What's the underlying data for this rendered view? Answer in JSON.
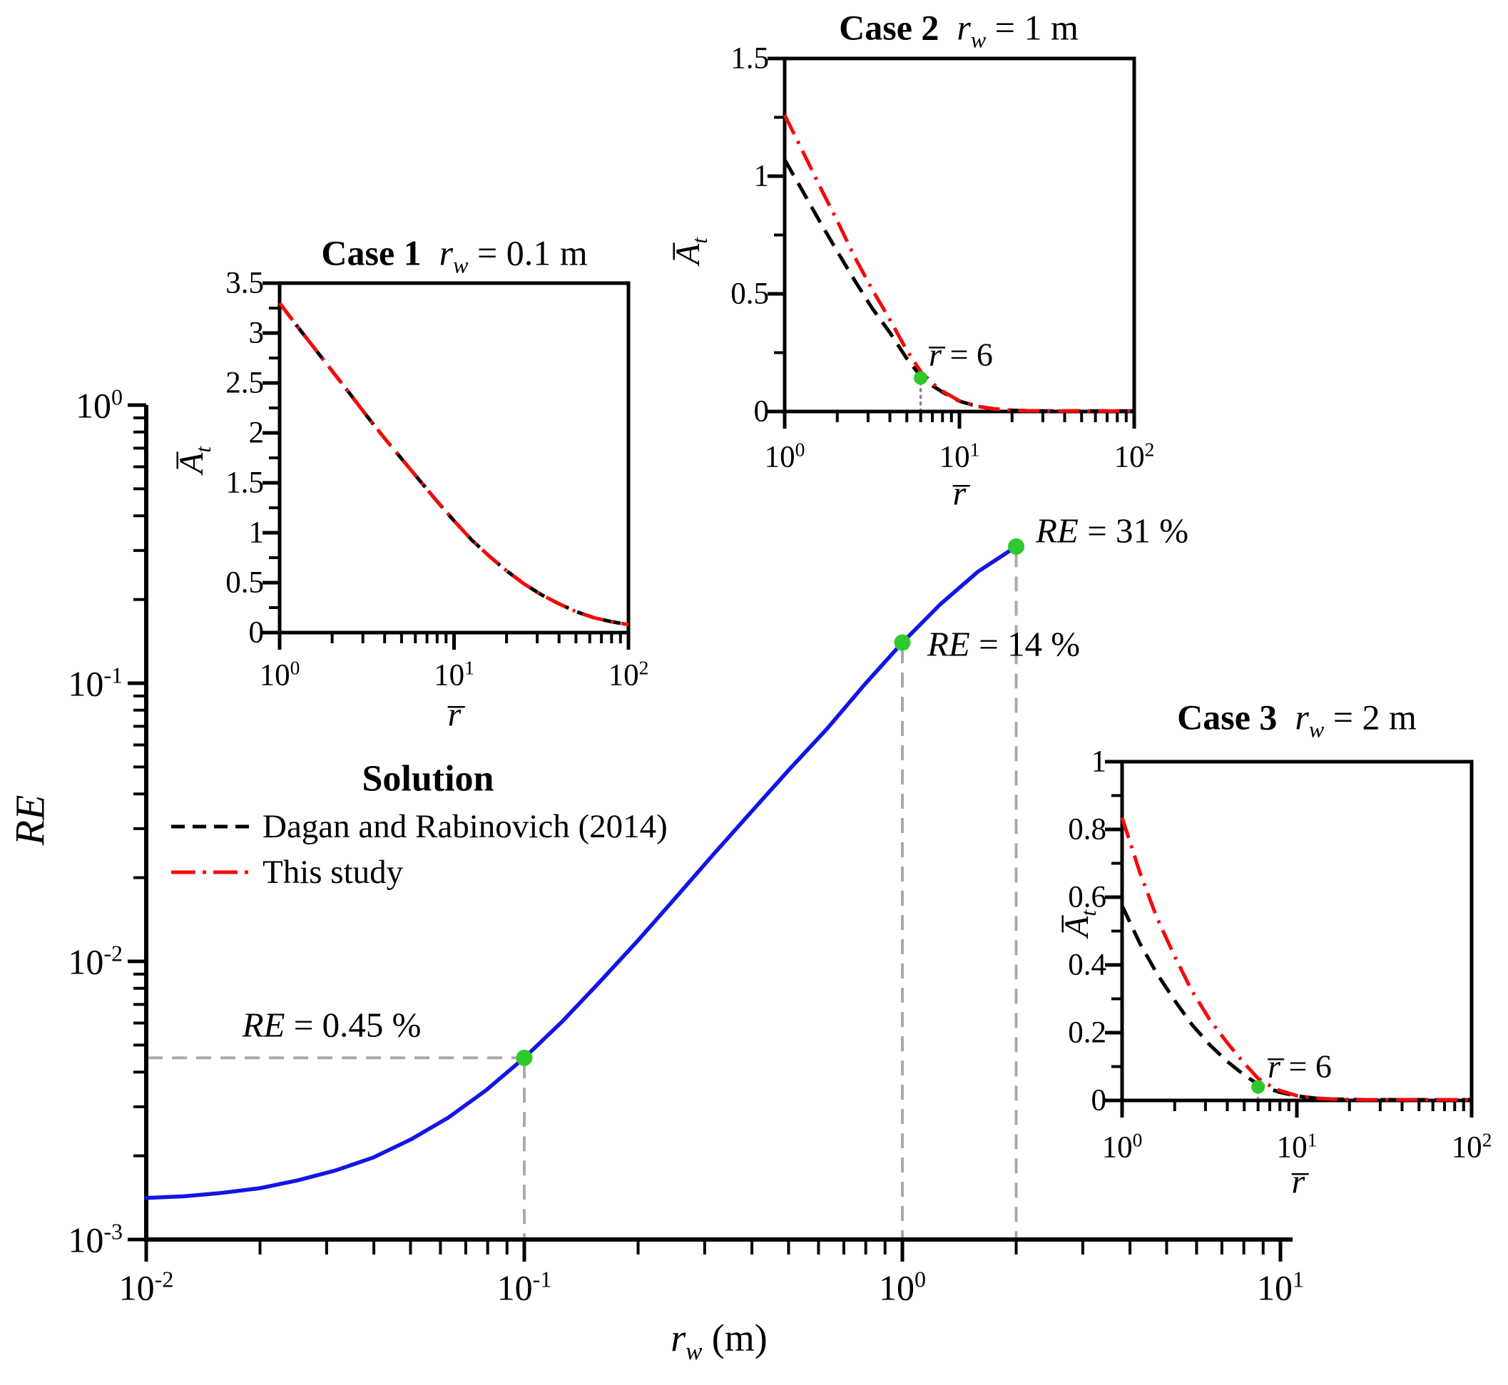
{
  "colors": {
    "curve_blue": "#1414e6",
    "curve_red": "#f50a0a",
    "curve_black": "#000000",
    "marker_green": "#2dc92d",
    "guide_gray": "#aaaaaa",
    "dotted_gray": "#8a8a8a"
  },
  "legend": {
    "title": "Solution",
    "items": [
      {
        "label": "Dagan and Rabinovich (2014)",
        "style": "dashed",
        "color": "#000000"
      },
      {
        "label": "This study",
        "style": "dashdot",
        "color": "#f50a0a"
      }
    ]
  },
  "main": {
    "ylabel": "RE",
    "xlabel": {
      "var": "r",
      "sub": "w",
      "rest": " (m)"
    },
    "tick_base": "10",
    "x_tick_exps": [
      "-2",
      "-1",
      "0",
      "1"
    ],
    "y_tick_exps": [
      "0",
      "-1",
      "-2",
      "-3"
    ],
    "annotations": [
      {
        "var": "RE",
        "rest": " = 0.45 %"
      },
      {
        "var": "RE",
        "rest": " = 14 %"
      },
      {
        "var": "RE",
        "rest": " = 31 %"
      }
    ]
  },
  "insets": {
    "case1": {
      "title": {
        "case": "Case 1",
        "var": "r",
        "sub": "w",
        "rest": " = 0.1 m"
      },
      "ylabel": {
        "var": "A̅",
        "sub": "t"
      },
      "xlabel": {
        "var": "r̅"
      },
      "tick_base": "10",
      "x_tick_exps": [
        "0",
        "1",
        "2"
      ],
      "y_tick_labels": [
        "3.5",
        "3",
        "2.5",
        "2",
        "1.5",
        "1",
        "0.5",
        "0"
      ],
      "y_tick_values": [
        3.5,
        3,
        2.5,
        2,
        1.5,
        1,
        0.5,
        0
      ]
    },
    "case2": {
      "title": {
        "case": "Case 2",
        "var": "r",
        "sub": "w",
        "rest": " = 1 m"
      },
      "ylabel": {
        "var": "A̅",
        "sub": "t"
      },
      "xlabel": {
        "var": "r̅"
      },
      "tick_base": "10",
      "x_tick_exps": [
        "0",
        "1",
        "2"
      ],
      "y_tick_labels": [
        "1.5",
        "1",
        "0.5",
        "0"
      ],
      "y_tick_values": [
        1.5,
        1,
        0.5,
        0
      ],
      "annotation": {
        "var": "r̅",
        "rest": " = 6"
      }
    },
    "case3": {
      "title": {
        "case": "Case 3",
        "var": "r",
        "sub": "w",
        "rest": " = 2 m"
      },
      "ylabel": {
        "var": "A̅",
        "sub": "t"
      },
      "xlabel": {
        "var": "r̅"
      },
      "tick_base": "10",
      "x_tick_exps": [
        "0",
        "1",
        "2"
      ],
      "y_tick_labels": [
        "1",
        "0.8",
        "0.6",
        "0.4",
        "0.2",
        "0"
      ],
      "y_tick_values": [
        1,
        0.8,
        0.6,
        0.4,
        0.2,
        0
      ],
      "annotation": {
        "var": "r̅",
        "rest": " = 6"
      }
    }
  },
  "chart_data": [
    {
      "id": "main",
      "type": "line",
      "title": "",
      "xlabel": "r_w (m)",
      "ylabel": "RE",
      "x_scale": "log",
      "y_scale": "log",
      "xlim": [
        0.01,
        10
      ],
      "ylim": [
        0.001,
        1
      ],
      "grid": false,
      "legend_position": "upper-left-inside",
      "series": [
        {
          "name": "RE vs r_w",
          "color_key": "curve_blue",
          "x": [
            0.01,
            0.0126,
            0.0158,
            0.02,
            0.0251,
            0.0316,
            0.0398,
            0.0501,
            0.0631,
            0.0794,
            0.1,
            0.126,
            0.158,
            0.2,
            0.251,
            0.316,
            0.398,
            0.501,
            0.631,
            0.794,
            1.0,
            1.259,
            1.585,
            2.0
          ],
          "y": [
            0.00141,
            0.00143,
            0.00147,
            0.00153,
            0.00163,
            0.00177,
            0.00197,
            0.00229,
            0.00275,
            0.00345,
            0.0045,
            0.00608,
            0.00841,
            0.0119,
            0.0169,
            0.0242,
            0.0344,
            0.0488,
            0.0684,
            0.0988,
            0.14,
            0.192,
            0.252,
            0.31
          ]
        }
      ],
      "markers": [
        {
          "x": 0.1,
          "y": 0.0045,
          "label": "RE = 0.45 %"
        },
        {
          "x": 1.0,
          "y": 0.14,
          "label": "RE = 14 %"
        },
        {
          "x": 2.0,
          "y": 0.31,
          "label": "RE = 31 %"
        }
      ]
    },
    {
      "id": "case1",
      "type": "line",
      "title": "Case 1 r_w = 0.1 m",
      "xlabel": "r̅",
      "ylabel": "A̅_t",
      "x_scale": "log",
      "y_scale": "linear",
      "xlim": [
        1,
        100
      ],
      "ylim": [
        0,
        3.5
      ],
      "series": [
        {
          "name": "Dagan and Rabinovich (2014)",
          "color_key": "curve_black",
          "x": [
            1,
            1.26,
            1.58,
            2,
            2.51,
            3.16,
            3.98,
            5.01,
            6.31,
            7.94,
            10,
            12.6,
            15.8,
            20,
            25.1,
            31.6,
            39.8,
            50.1,
            63.1,
            79.4,
            100
          ],
          "y": [
            3.3,
            3.07,
            2.85,
            2.62,
            2.4,
            2.17,
            1.95,
            1.74,
            1.53,
            1.32,
            1.12,
            0.93,
            0.77,
            0.62,
            0.49,
            0.38,
            0.29,
            0.21,
            0.15,
            0.11,
            0.08
          ]
        },
        {
          "name": "This study",
          "color_key": "curve_red",
          "x": [
            1,
            1.26,
            1.58,
            2,
            2.51,
            3.16,
            3.98,
            5.01,
            6.31,
            7.94,
            10,
            12.6,
            15.8,
            20,
            25.1,
            31.6,
            39.8,
            50.1,
            63.1,
            79.4,
            100
          ],
          "y": [
            3.3,
            3.07,
            2.85,
            2.62,
            2.4,
            2.17,
            1.95,
            1.74,
            1.53,
            1.32,
            1.12,
            0.93,
            0.77,
            0.62,
            0.49,
            0.38,
            0.29,
            0.21,
            0.15,
            0.11,
            0.08
          ]
        }
      ],
      "markers": []
    },
    {
      "id": "case2",
      "type": "line",
      "title": "Case 2 r_w = 1 m",
      "xlabel": "r̅",
      "ylabel": "A̅_t",
      "x_scale": "log",
      "y_scale": "linear",
      "xlim": [
        1,
        100
      ],
      "ylim": [
        0,
        1.5
      ],
      "series": [
        {
          "name": "Dagan and Rabinovich (2014)",
          "color_key": "curve_black",
          "x": [
            1,
            1.26,
            1.58,
            2,
            2.5,
            3.16,
            4,
            5,
            6,
            7,
            8,
            10,
            12.6,
            15.8,
            20,
            25,
            31.6,
            39.8,
            50,
            63,
            79,
            100
          ],
          "y": [
            1.07,
            0.94,
            0.81,
            0.68,
            0.56,
            0.44,
            0.335,
            0.225,
            0.15,
            0.11,
            0.082,
            0.044,
            0.022,
            0.011,
            0.005,
            0.003,
            0.002,
            0.002,
            0.002,
            0.002,
            0.002,
            0.002
          ]
        },
        {
          "name": "This study",
          "color_key": "curve_red",
          "x": [
            1,
            1.26,
            1.58,
            2,
            2.5,
            3.16,
            4,
            5,
            6,
            7,
            8,
            10,
            12.6,
            15.8,
            20,
            25,
            31.6,
            39.8,
            50,
            63,
            79,
            100
          ],
          "y": [
            1.26,
            1.11,
            0.96,
            0.81,
            0.66,
            0.52,
            0.39,
            0.26,
            0.17,
            0.12,
            0.086,
            0.045,
            0.022,
            0.011,
            0.005,
            0.003,
            0.002,
            0.002,
            0.002,
            0.002,
            0.002,
            0.002
          ]
        }
      ],
      "markers": [
        {
          "x": 6,
          "y": 0.142,
          "label": "r̅ = 6"
        }
      ]
    },
    {
      "id": "case3",
      "type": "line",
      "title": "Case 3 r_w = 2 m",
      "xlabel": "r̅",
      "ylabel": "A̅_t",
      "x_scale": "log",
      "y_scale": "linear",
      "xlim": [
        1,
        100
      ],
      "ylim": [
        0,
        1
      ],
      "series": [
        {
          "name": "Dagan and Rabinovich (2014)",
          "color_key": "curve_black",
          "x": [
            1,
            1.26,
            1.58,
            2,
            2.5,
            3.16,
            4,
            5,
            6,
            7,
            8,
            10,
            12.6,
            15.8,
            20,
            25,
            31.6,
            39.8,
            50,
            63,
            79,
            100
          ],
          "y": [
            0.575,
            0.465,
            0.375,
            0.295,
            0.225,
            0.165,
            0.115,
            0.075,
            0.048,
            0.034,
            0.024,
            0.013,
            0.007,
            0.004,
            0.003,
            0.002,
            0.002,
            0.002,
            0.002,
            0.002,
            0.002,
            0.002
          ]
        },
        {
          "name": "This study",
          "color_key": "curve_red",
          "x": [
            1,
            1.26,
            1.58,
            2,
            2.5,
            3.16,
            4,
            5,
            6,
            7,
            8,
            10,
            12.6,
            15.8,
            20,
            25,
            31.6,
            39.8,
            50,
            63,
            79,
            100
          ],
          "y": [
            0.835,
            0.675,
            0.54,
            0.425,
            0.325,
            0.24,
            0.17,
            0.11,
            0.065,
            0.044,
            0.029,
            0.014,
            0.007,
            0.004,
            0.003,
            0.002,
            0.002,
            0.002,
            0.002,
            0.002,
            0.002,
            0.002
          ]
        }
      ],
      "markers": [
        {
          "x": 6,
          "y": 0.04,
          "label": "r̅ = 6"
        }
      ]
    }
  ]
}
